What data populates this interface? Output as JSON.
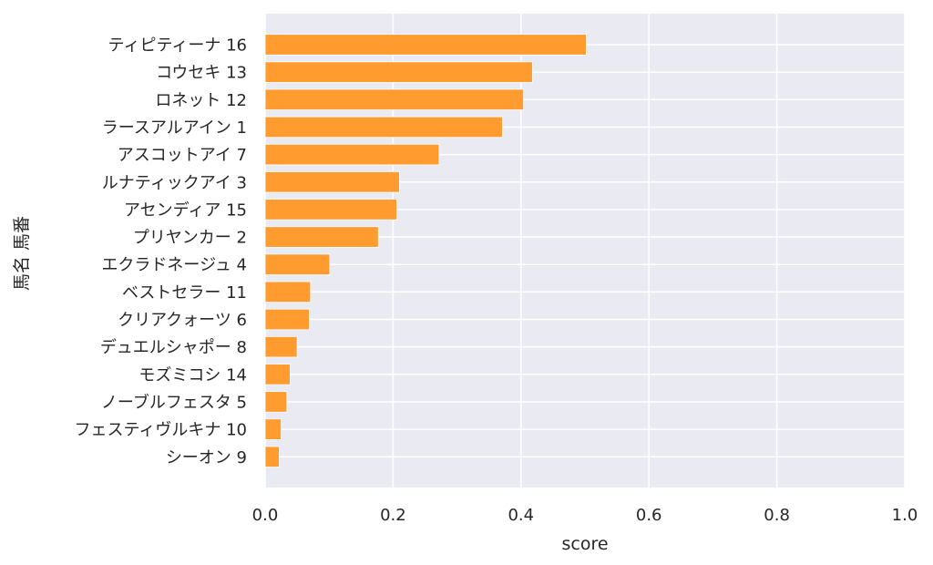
{
  "chart_data": {
    "type": "bar",
    "orientation": "horizontal",
    "xlabel": "score",
    "ylabel": "馬名 馬番",
    "xlim": [
      0.0,
      1.0
    ],
    "xticks": [
      "0.0",
      "0.2",
      "0.4",
      "0.6",
      "0.8",
      "1.0"
    ],
    "grid": true,
    "bar_color": "#ff9b2f",
    "background_color": "#eaeaf2",
    "categories": [
      "ティピティーナ 16",
      "コウセキ 13",
      "ロネット 12",
      "ラースアルアイン 1",
      "アスコットアイ 7",
      "ルナティックアイ 3",
      "アセンディア 15",
      "プリヤンカー 2",
      "エクラドネージュ 4",
      "ベストセラー 11",
      "クリアクォーツ 6",
      "デュエルシャポー 8",
      "モズミコシ 14",
      "ノーブルフェスタ 5",
      "フェスティヴルキナ 10",
      "シーオン 9"
    ],
    "values": [
      0.502,
      0.418,
      0.404,
      0.371,
      0.272,
      0.21,
      0.206,
      0.177,
      0.101,
      0.071,
      0.069,
      0.05,
      0.039,
      0.034,
      0.025,
      0.022
    ]
  }
}
